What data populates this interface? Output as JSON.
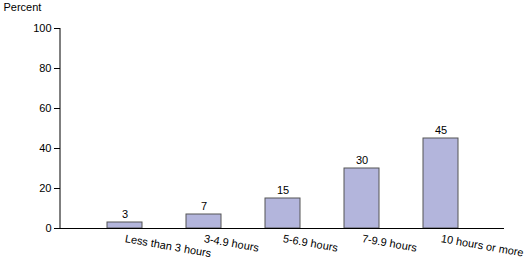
{
  "chart_data": {
    "type": "bar",
    "y_label": "Percent",
    "categories": [
      "Less than 3 hours",
      "3-4.9 hours",
      "5-6.9 hours",
      "7-9.9 hours",
      "10 hours or more"
    ],
    "values": [
      3,
      7,
      15,
      30,
      45
    ],
    "color": "#b3b5dc",
    "ylim": [
      0,
      100
    ],
    "yticks": [
      0,
      20,
      40,
      60,
      80,
      100
    ],
    "grid": false,
    "data_labels": true
  }
}
